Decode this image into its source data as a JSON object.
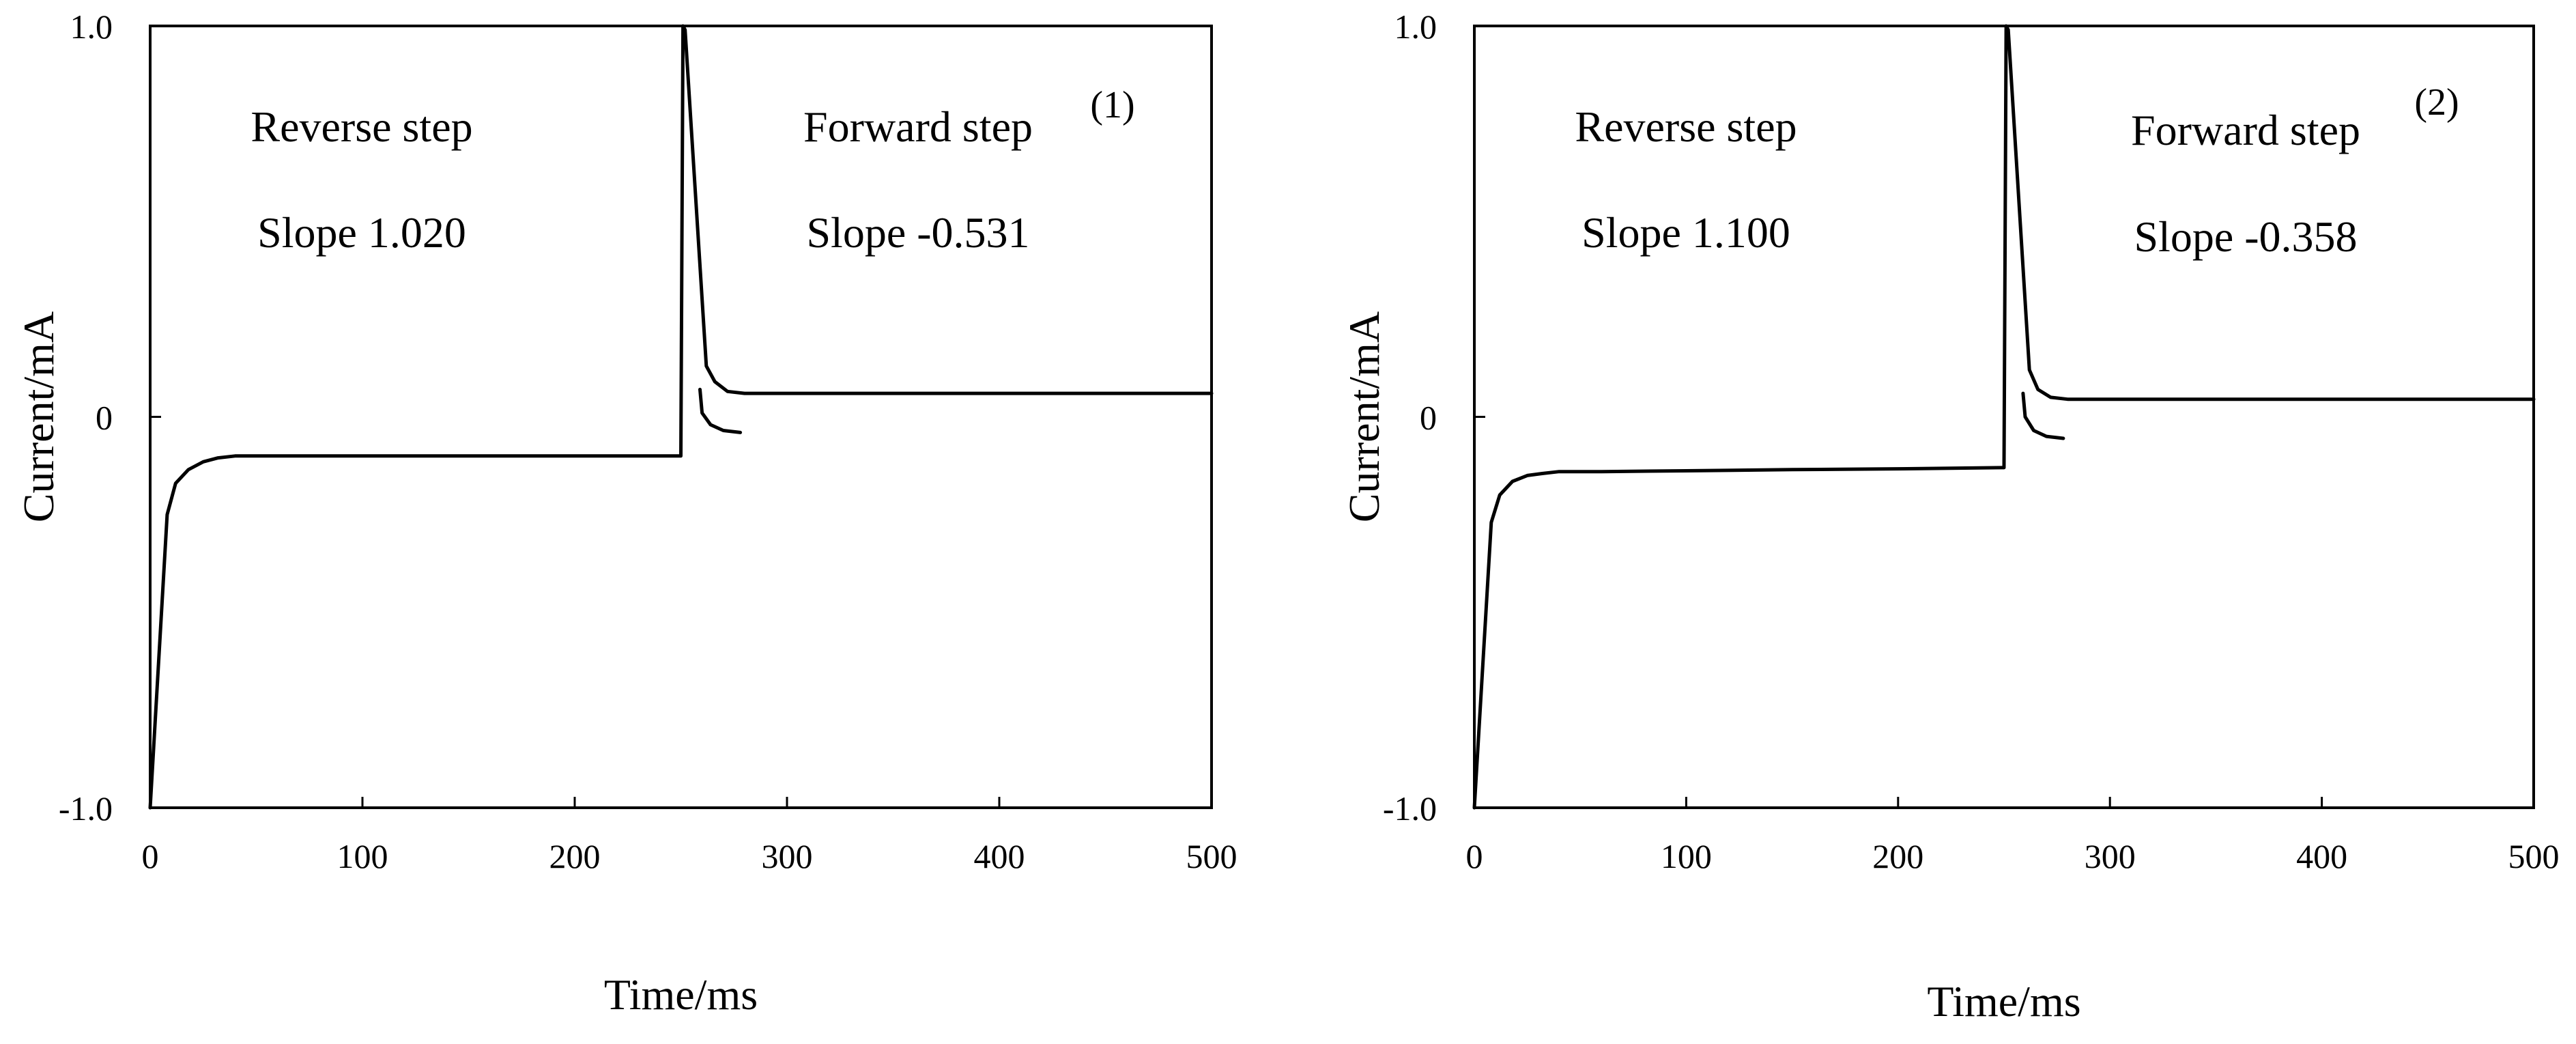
{
  "colors": {
    "line": "#000000",
    "background": "#ffffff"
  },
  "chart_data": [
    {
      "type": "line",
      "panel_label": "(1)",
      "xlabel": "Time/ms",
      "ylabel": "Current/mA",
      "xlim": [
        0,
        500
      ],
      "ylim": [
        -1.0,
        1.0
      ],
      "x_ticks": [
        0,
        100,
        200,
        300,
        400,
        500
      ],
      "x_tick_labels": [
        "0",
        "100",
        "200",
        "300",
        "400",
        "500"
      ],
      "y_ticks": [
        -1.0,
        0,
        1.0
      ],
      "y_tick_labels": [
        "-1.0",
        "0",
        "1.0"
      ],
      "grid": false,
      "annotations": {
        "reverse_title": "Reverse step",
        "reverse_slope": "Slope 1.020",
        "forward_title": "Forward step",
        "forward_slope": "Slope -0.531"
      },
      "series": [
        {
          "x": [
            0,
            8,
            12,
            18,
            25,
            32,
            40,
            60,
            100,
            150,
            200,
            249,
            250,
            251,
            252,
            262,
            266,
            272,
            280,
            300,
            400,
            500
          ],
          "y": [
            -1.0,
            -0.25,
            -0.17,
            -0.135,
            -0.115,
            -0.105,
            -0.1,
            -0.1,
            -0.1,
            -0.1,
            -0.1,
            -0.1,
            -0.1,
            1.0,
            0.99,
            0.13,
            0.09,
            0.065,
            0.06,
            0.06,
            0.06,
            0.06
          ]
        },
        {
          "x": [
            259,
            260,
            264,
            270,
            278
          ],
          "y": [
            0.07,
            0.01,
            -0.02,
            -0.035,
            -0.04
          ]
        }
      ]
    },
    {
      "type": "line",
      "panel_label": "(2)",
      "xlabel": "Time/ms",
      "ylabel": "Current/mA",
      "xlim": [
        0,
        500
      ],
      "ylim": [
        -1.0,
        1.0
      ],
      "x_ticks": [
        0,
        100,
        200,
        300,
        400,
        500
      ],
      "x_tick_labels": [
        "0",
        "100",
        "200",
        "300",
        "400",
        "500"
      ],
      "y_ticks": [
        -1.0,
        0,
        1.0
      ],
      "y_tick_labels": [
        "-1.0",
        "0",
        "1.0"
      ],
      "grid": false,
      "annotations": {
        "reverse_title": "Reverse step",
        "reverse_slope": "Slope 1.100",
        "forward_title": "Forward step",
        "forward_slope": "Slope -0.358"
      },
      "series": [
        {
          "x": [
            0,
            8,
            12,
            18,
            25,
            32,
            40,
            60,
            100,
            150,
            200,
            249,
            250,
            251,
            252,
            262,
            266,
            272,
            280,
            300,
            400,
            500
          ],
          "y": [
            -1.0,
            -0.27,
            -0.2,
            -0.165,
            -0.15,
            -0.145,
            -0.14,
            -0.14,
            -0.138,
            -0.135,
            -0.133,
            -0.13,
            -0.13,
            1.0,
            0.99,
            0.12,
            0.07,
            0.05,
            0.045,
            0.045,
            0.045,
            0.045
          ]
        },
        {
          "x": [
            259,
            260,
            264,
            270,
            278
          ],
          "y": [
            0.06,
            0.0,
            -0.035,
            -0.05,
            -0.055
          ]
        }
      ]
    }
  ]
}
